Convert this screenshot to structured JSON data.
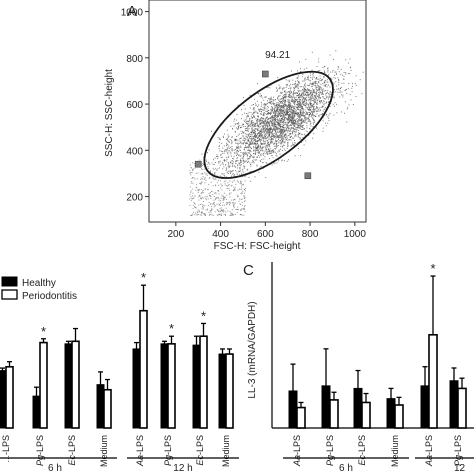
{
  "chart_data": [
    {
      "panel": "A",
      "type": "scatter",
      "xlabel": "FSC-H: FSC-height",
      "ylabel": "SSC-H: SSC-height",
      "xlim": [
        80,
        1050
      ],
      "ylim": [
        90,
        1050
      ],
      "x_ticks": [
        200,
        400,
        600,
        800,
        1000
      ],
      "y_ticks": [
        200,
        400,
        600,
        800,
        1000
      ],
      "gate": {
        "label": "94.21",
        "center": [
          615,
          510
        ],
        "semi_axes": [
          380,
          165
        ],
        "rotation_deg": 37,
        "handles": [
          [
            300,
            340
          ],
          [
            600,
            730
          ],
          [
            790,
            290
          ]
        ]
      },
      "point_color": "#555555"
    },
    {
      "panel": "B",
      "type": "bar",
      "series": [
        {
          "name": "Healthy",
          "fill": "#000000"
        },
        {
          "name": "Periodontitis",
          "fill": "#ffffff"
        }
      ],
      "categories": [
        "...-LPS",
        "Pg-LPS",
        "Ec-LPS",
        "Medium",
        "Aa-LPS",
        "Pg-LPS",
        "Ec-LPS",
        "Medium"
      ],
      "groups": [
        {
          "label": "6 h",
          "range": [
            0,
            3
          ]
        },
        {
          "label": "12 h",
          "range": [
            4,
            7
          ]
        }
      ],
      "ylim": [
        0,
        1.2
      ],
      "healthy": [
        0.45,
        0.25,
        0.66,
        0.34,
        0.62,
        0.66,
        0.65,
        0.58
      ],
      "healthy_err": [
        0.02,
        0.07,
        0.02,
        0.1,
        0.05,
        0.02,
        0.07,
        0.04
      ],
      "periodontitis": [
        0.48,
        0.67,
        0.68,
        0.3,
        0.92,
        0.66,
        0.72,
        0.58
      ],
      "periodontitis_err": [
        0.04,
        0.03,
        0.1,
        0.08,
        0.2,
        0.06,
        0.1,
        0.04
      ],
      "significance": [
        {
          "index": 1,
          "text": "*"
        },
        {
          "index": 4,
          "text": "*"
        },
        {
          "index": 5,
          "text": "*"
        },
        {
          "index": 6,
          "text": "*"
        }
      ]
    },
    {
      "panel": "C",
      "type": "bar",
      "ylabel": "LL-3 (mRNA/GAPDH)",
      "categories": [
        "Aa-LPS",
        "Pg-LPS",
        "Ec-LPS",
        "Medium",
        "Aa-LPS",
        "Pg-LPS",
        "Ec-..."
      ],
      "groups": [
        {
          "label": "6 h",
          "range": [
            0,
            3
          ]
        },
        {
          "label": "12",
          "range": [
            4,
            6
          ]
        }
      ],
      "ylim": [
        0,
        0.13
      ],
      "healthy": [
        0.029,
        0.033,
        0.031,
        0.023,
        0.033,
        0.037,
        0.034
      ],
      "healthy_err": [
        0.021,
        0.029,
        0.014,
        0.008,
        0.015,
        0.01,
        0.01
      ],
      "periodontitis": [
        0.016,
        0.022,
        0.02,
        0.018,
        0.073,
        0.031,
        0.022
      ],
      "periodontitis_err": [
        0.004,
        0.006,
        0.007,
        0.006,
        0.046,
        0.008,
        0.006
      ],
      "significance": [
        {
          "index": 4,
          "text": "*"
        }
      ]
    }
  ],
  "labels": {
    "panel_a": "A",
    "panel_c": "C",
    "legend_healthy": "Healthy",
    "legend_periodontitis": "Periodontitis"
  }
}
